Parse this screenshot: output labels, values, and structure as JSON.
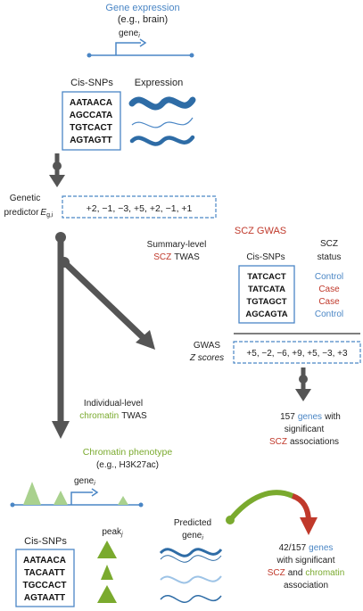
{
  "colors": {
    "blue": "#4a86c5",
    "dark_blue": "#2e6ca6",
    "light_blue": "#9dc3e6",
    "red": "#c0392b",
    "green": "#7aaa2e",
    "light_green": "#a9d18e",
    "arrow_gray": "#555555",
    "text": "#222222"
  },
  "top": {
    "title": "Gene expression",
    "subtitle": "(e.g., brain)",
    "gene_label": "gene",
    "gene_sub": "i"
  },
  "expression_panel": {
    "cis_snps_header": "Cis-SNPs",
    "expression_header": "Expression",
    "snps": [
      "AATAACA",
      "AGCCATA",
      "TGTCACT",
      "AGTAGTT"
    ]
  },
  "predictor": {
    "label_line1": "Genetic",
    "label_line2": "predictor",
    "symbol": "E",
    "symbol_sub": "g,i",
    "values": "+2, −1, −3, +5, +2, −1, +1"
  },
  "summary_twas": {
    "line1": "Summary-level",
    "line2_colored": "SCZ",
    "line2_rest": "TWAS"
  },
  "scz_gwas": {
    "title": "SCZ GWAS",
    "cis_snps_header": "Cis-SNPs",
    "status_header_line1": "SCZ",
    "status_header_line2": "status",
    "snps": [
      "TATCACT",
      "TATCATA",
      "TGTAGCT",
      "AGCAGTA"
    ],
    "statuses": [
      "Control",
      "Case",
      "Case",
      "Control"
    ]
  },
  "gwas_scores": {
    "label_line1": "GWAS",
    "label_line2": "Z scores",
    "values": "+5, −2, −6, +9, +5, −3, +3"
  },
  "genes_157": {
    "line1_number": "157",
    "line1_colored": "genes",
    "line1_rest": "with",
    "line2": "significant",
    "line3_colored": "SCZ",
    "line3_rest": "associations"
  },
  "individual_twas": {
    "line1": "Individual-level",
    "line2_colored": "chromatin",
    "line2_rest": "TWAS"
  },
  "chromatin": {
    "title": "Chromatin phenotype",
    "subtitle": "(e.g., H3K27ac)",
    "gene_label": "gene",
    "gene_sub": "i"
  },
  "bottom_panel": {
    "cis_snps_header": "Cis-SNPs",
    "snps": [
      "AATAACA",
      "TACAATT",
      "TGCCACT",
      "AGTAATT"
    ],
    "peak_label": "peak",
    "peak_sub": "j",
    "predicted_line1": "Predicted",
    "predicted_line2": "gene",
    "predicted_sub": "i"
  },
  "result": {
    "line1_number": "42/157",
    "line1_colored": "genes",
    "line2": "with significant",
    "line3_colored_red": "SCZ",
    "line3_mid": "and",
    "line3_colored_green": "chromatin",
    "line4": "association"
  }
}
